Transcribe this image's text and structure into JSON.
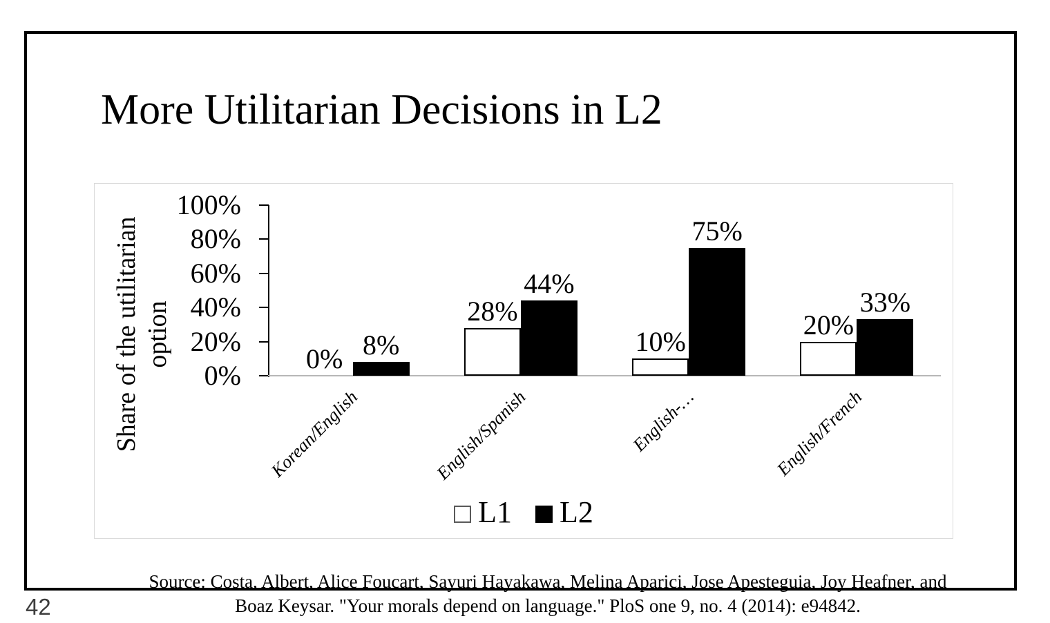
{
  "page_number": "42",
  "slide": {
    "title": "More Utilitarian Decisions in L2",
    "source_line1": "Source: Costa, Albert, Alice Foucart, Sayuri Hayakawa, Melina Aparici, Jose Apesteguia, Joy Heafner, and",
    "source_line2": "Boaz Keysar. \"Your morals depend on language.\" PloS one 9, no. 4 (2014): e94842."
  },
  "chart_data": {
    "type": "bar",
    "title": "",
    "categories": [
      "Korean/English",
      "English/Spanish",
      "English-…",
      "English/French"
    ],
    "series": [
      {
        "name": "L1",
        "values": [
          0,
          28,
          10,
          20
        ],
        "labels": [
          "0%",
          "28%",
          "10%",
          "20%"
        ],
        "fill": "#ffffff",
        "border": "#000000"
      },
      {
        "name": "L2",
        "values": [
          8,
          44,
          75,
          33
        ],
        "labels": [
          "8%",
          "44%",
          "75%",
          "33%"
        ],
        "fill": "#000000",
        "border": "#000000"
      }
    ],
    "xlabel": "",
    "ylabel": "Share of the utilitarian option",
    "ylabel_lines": [
      "Share of the utilitarian",
      "option"
    ],
    "y_ticks": [
      "100%",
      "80%",
      "60%",
      "40%",
      "20%",
      "0%"
    ],
    "ylim": [
      0,
      100
    ],
    "grid": false,
    "legend_position": "bottom",
    "colors": {
      "axis_line": "#000000",
      "baseline": "#b7b7b7",
      "chart_border": "#d9d9d9",
      "text": "#000000",
      "page_number": "#3d3d3d"
    }
  }
}
